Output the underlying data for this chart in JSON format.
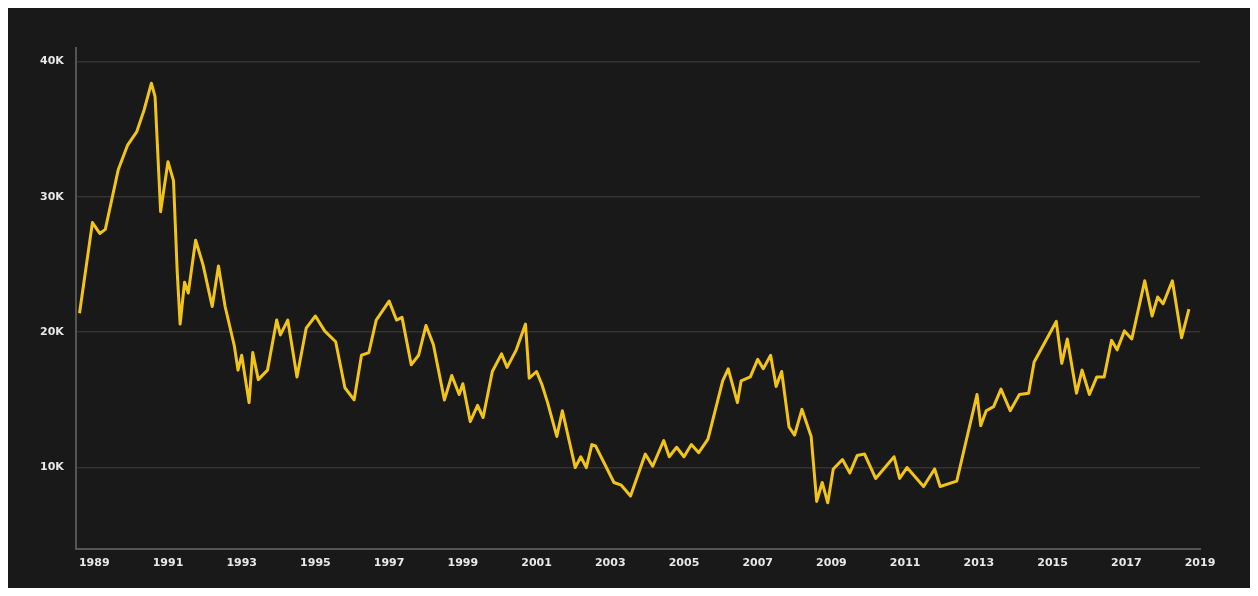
{
  "chart_data": {
    "type": "line",
    "x": [
      1988.6,
      1988.95,
      1989.15,
      1989.3,
      1989.65,
      1989.9,
      1990.15,
      1990.35,
      1990.55,
      1990.65,
      1990.8,
      1991.0,
      1991.15,
      1991.25,
      1991.33,
      1991.45,
      1991.55,
      1991.75,
      1991.95,
      1992.2,
      1992.37,
      1992.55,
      1992.8,
      1992.9,
      1993.0,
      1993.2,
      1993.3,
      1993.45,
      1993.7,
      1993.95,
      1994.05,
      1994.25,
      1994.5,
      1994.75,
      1995.0,
      1995.25,
      1995.55,
      1995.8,
      1996.05,
      1996.25,
      1996.45,
      1996.65,
      1997.0,
      1997.2,
      1997.35,
      1997.6,
      1997.8,
      1998.0,
      1998.2,
      1998.5,
      1998.7,
      1998.9,
      1999.0,
      1999.2,
      1999.4,
      1999.55,
      1999.8,
      2000.05,
      2000.2,
      2000.45,
      2000.7,
      2000.8,
      2001.0,
      2001.15,
      2001.3,
      2001.55,
      2001.7,
      2002.05,
      2002.2,
      2002.35,
      2002.5,
      2002.6,
      2003.1,
      2003.3,
      2003.55,
      2003.95,
      2004.15,
      2004.45,
      2004.6,
      2004.8,
      2005.0,
      2005.2,
      2005.4,
      2005.65,
      2006.05,
      2006.2,
      2006.45,
      2006.55,
      2006.8,
      2007.0,
      2007.15,
      2007.35,
      2007.5,
      2007.65,
      2007.85,
      2008.0,
      2008.2,
      2008.45,
      2008.6,
      2008.75,
      2008.9,
      2009.05,
      2009.3,
      2009.5,
      2009.7,
      2009.9,
      2010.2,
      2010.7,
      2010.85,
      2011.05,
      2011.5,
      2011.8,
      2011.95,
      2012.4,
      2012.95,
      2013.05,
      2013.2,
      2013.4,
      2013.6,
      2013.85,
      2014.1,
      2014.35,
      2014.5,
      2014.7,
      2015.1,
      2015.25,
      2015.4,
      2015.65,
      2015.8,
      2016.0,
      2016.2,
      2016.4,
      2016.6,
      2016.75,
      2016.95,
      2017.15,
      2017.5,
      2017.7,
      2017.85,
      2018.0,
      2018.25,
      2018.5,
      2018.7
    ],
    "series": [
      {
        "color": "#f2c417",
        "values": [
          21400,
          28100,
          27300,
          27600,
          32000,
          33800,
          34800,
          36400,
          38400,
          37400,
          28900,
          32600,
          31200,
          24500,
          20600,
          23700,
          22900,
          26800,
          25000,
          21900,
          24900,
          21900,
          19000,
          17200,
          18300,
          14800,
          18500,
          16500,
          17200,
          20900,
          19800,
          20900,
          16700,
          20300,
          21200,
          20100,
          19300,
          15900,
          15000,
          18300,
          18500,
          20900,
          22300,
          20900,
          21100,
          17600,
          18300,
          20500,
          19100,
          15000,
          16800,
          15400,
          16200,
          13400,
          14600,
          13700,
          17100,
          18400,
          17400,
          18700,
          20600,
          16600,
          17100,
          16100,
          14800,
          12300,
          14200,
          10000,
          10800,
          10000,
          11700,
          11600,
          8900,
          8700,
          7900,
          11000,
          10100,
          12000,
          10800,
          11500,
          10800,
          11700,
          11100,
          12100,
          16400,
          17300,
          14800,
          16400,
          16700,
          18000,
          17300,
          18300,
          16000,
          17100,
          13000,
          12400,
          14300,
          12300,
          7500,
          8900,
          7400,
          9900,
          10600,
          9600,
          10900,
          11000,
          9200,
          10800,
          9200,
          10000,
          8600,
          9900,
          8600,
          9000,
          15400,
          13100,
          14200,
          14500,
          15800,
          14200,
          15400,
          15500,
          17800,
          18800,
          20800,
          17700,
          19500,
          15500,
          17200,
          15400,
          16700,
          16700,
          19400,
          18700,
          20100,
          19500,
          23800,
          21200,
          22600,
          22100,
          23800,
          19600,
          21700
        ]
      }
    ],
    "xlim": [
      1988.5,
      2019
    ],
    "xticks": [
      1989,
      1991,
      1993,
      1995,
      1997,
      1999,
      2001,
      2003,
      2005,
      2007,
      2009,
      2011,
      2013,
      2015,
      2017,
      2019
    ],
    "ylim": [
      4000,
      41000
    ],
    "yticks": [
      {
        "value": 10000,
        "label": "10K"
      },
      {
        "value": 20000,
        "label": "20K"
      },
      {
        "value": 30000,
        "label": "30K"
      },
      {
        "value": 40000,
        "label": "40K"
      }
    ],
    "grid": "y",
    "marker": "none",
    "line_style": "solid"
  }
}
